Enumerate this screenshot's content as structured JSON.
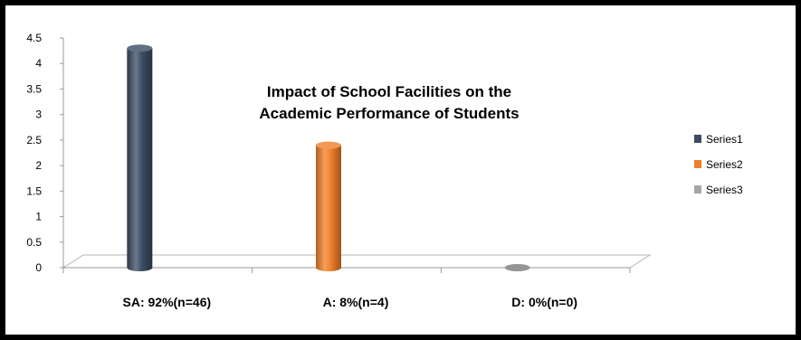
{
  "chart_data": {
    "type": "bar",
    "title_lines": [
      "Impact of School Facilities on the",
      "Academic Performance of Students"
    ],
    "categories": [
      "SA: 92%(n=46)",
      "A: 8%(n=4)",
      "D: 0%(n=0)"
    ],
    "series": [
      {
        "name": "Series1",
        "color": "#3b4b63",
        "values": [
          4.3,
          null,
          null
        ]
      },
      {
        "name": "Series2",
        "color": "#f07f2a",
        "values": [
          null,
          2.4,
          null
        ]
      },
      {
        "name": "Series3",
        "color": "#a6a6a6",
        "values": [
          null,
          null,
          0
        ]
      }
    ],
    "ylim": [
      0,
      4.5
    ],
    "yticks": [
      "0",
      "0.5",
      "1",
      "1.5",
      "2",
      "2.5",
      "3",
      "3.5",
      "4",
      "4.5"
    ],
    "xlabel": "",
    "ylabel": "",
    "grid": false,
    "legend_position": "right",
    "style": "3d-cylinder"
  }
}
